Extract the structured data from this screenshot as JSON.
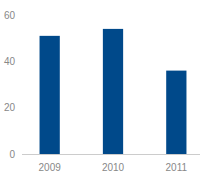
{
  "chart_data": {
    "type": "bar",
    "categories": [
      "2009",
      "2010",
      "2011"
    ],
    "values": [
      51,
      54,
      36
    ],
    "color": "#00498a",
    "ylim": [
      0,
      60
    ],
    "yticks": [
      0,
      20,
      40,
      60
    ],
    "grid": false
  }
}
